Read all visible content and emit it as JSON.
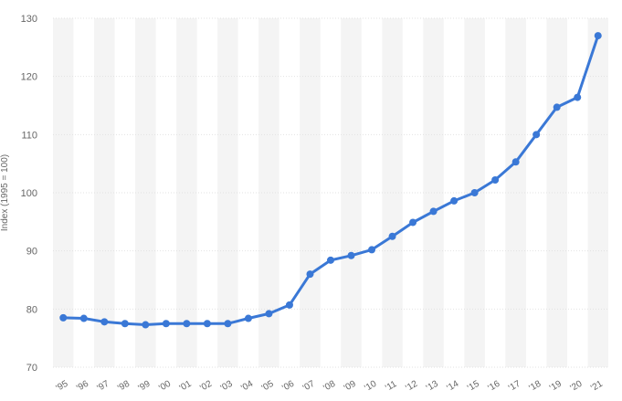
{
  "chart_data": {
    "type": "line",
    "title": "",
    "xlabel": "",
    "ylabel": "Index (1995 = 100)",
    "x": [
      "'95",
      "'96",
      "'97",
      "'98",
      "'99",
      "'00",
      "'01",
      "'02",
      "'03",
      "'04",
      "'05",
      "'06",
      "'07",
      "'08",
      "'09",
      "'10",
      "'11",
      "'12",
      "'13",
      "'14",
      "'15",
      "'16",
      "'17",
      "'18",
      "'19",
      "'20",
      "'21"
    ],
    "series": [
      {
        "values": [
          78.5,
          78.4,
          77.8,
          77.5,
          77.3,
          77.5,
          77.5,
          77.5,
          77.5,
          78.4,
          79.2,
          80.7,
          86.0,
          88.4,
          89.2,
          90.2,
          92.5,
          94.9,
          96.8,
          98.6,
          100.0,
          102.2,
          105.3,
          110.0,
          114.7,
          116.4,
          127.0
        ]
      }
    ],
    "ylim": [
      70,
      130
    ],
    "yticks": [
      70,
      80,
      90,
      100,
      110,
      120,
      130
    ],
    "grid": true,
    "colors": {
      "line": "#3a78d6",
      "band": "#f4f4f4",
      "grid": "#e2e2e2"
    }
  }
}
